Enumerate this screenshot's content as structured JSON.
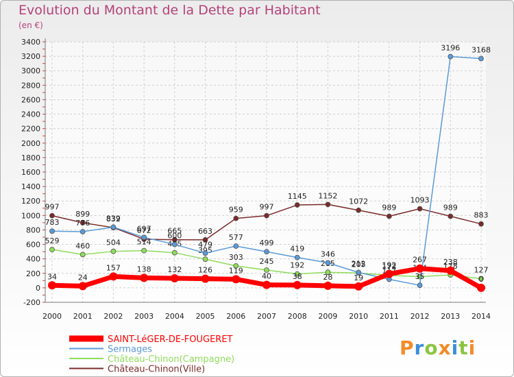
{
  "chart_data": {
    "type": "line",
    "title": "Evolution du Montant de la Dette par Habitant",
    "unit_label": "(en €)",
    "categories": [
      "2000",
      "2001",
      "2002",
      "2003",
      "2004",
      "2005",
      "2006",
      "2007",
      "2008",
      "2009",
      "2010",
      "2011",
      "2012",
      "2013",
      "2014"
    ],
    "ylim": [
      -200,
      3400
    ],
    "yticks": [
      -200,
      0,
      200,
      400,
      600,
      800,
      1000,
      1200,
      1400,
      1600,
      1800,
      2000,
      2200,
      2400,
      2600,
      2800,
      3000,
      3200,
      3400
    ],
    "grid": true,
    "series": [
      {
        "name": "Château-Chinon(Ville)",
        "color": "#7a2a2a",
        "values": [
          997,
          899,
          832,
          672,
          665,
          663,
          959,
          997,
          1145,
          1152,
          1072,
          989,
          1093,
          989,
          883
        ],
        "labels": [
          "997",
          "899",
          "832",
          "672",
          "665",
          "663",
          "959",
          "997",
          "1145",
          "1152",
          "1072",
          "989",
          "1093",
          "989",
          "883"
        ]
      },
      {
        "name": "Château-Chinon(Campagne)",
        "color": "#8fdc5a",
        "values": [
          529,
          460,
          504,
          514,
          485,
          395,
          303,
          245,
          192,
          215,
          205,
          172,
          154,
          178,
          127
        ],
        "labels": [
          "529",
          "460",
          "504",
          "514",
          "485",
          "395",
          "303",
          "245",
          "192",
          "215",
          "205",
          "172",
          "154",
          "178",
          "127"
        ]
      },
      {
        "name": "Sermages",
        "color": "#5a9ad8",
        "values": [
          783,
          776,
          839,
          697,
          600,
          479,
          577,
          499,
          419,
          346,
          212,
          117,
          35,
          3196,
          3168
        ],
        "labels": [
          "783",
          "776",
          "839",
          "697",
          "600",
          "479",
          "577",
          "499",
          "419",
          "346",
          "212",
          "117",
          "35",
          "3196",
          "3168"
        ]
      },
      {
        "name": "SAINT-LéGER-DE-FOUGERET",
        "color": "#ff0000",
        "values": [
          34,
          24,
          157,
          138,
          132,
          126,
          119,
          40,
          38,
          28,
          19,
          192,
          267,
          238,
          0
        ],
        "labels": [
          "34",
          "24",
          "157",
          "138",
          "132",
          "126",
          "119",
          "40",
          "38",
          "28",
          "19",
          "192",
          "267",
          "238",
          "0"
        ]
      }
    ],
    "legend": [
      {
        "name": "SAINT-LéGER-DE-FOUGERET",
        "color": "#ff0000"
      },
      {
        "name": "Sermages",
        "color": "#5a9ad8"
      },
      {
        "name": "Château-Chinon(Campagne)",
        "color": "#8fdc5a"
      },
      {
        "name": "Château-Chinon(Ville)",
        "color": "#7a2a2a"
      }
    ],
    "legend_position": "bottom-left"
  },
  "logo": {
    "text": "Proxiti"
  }
}
